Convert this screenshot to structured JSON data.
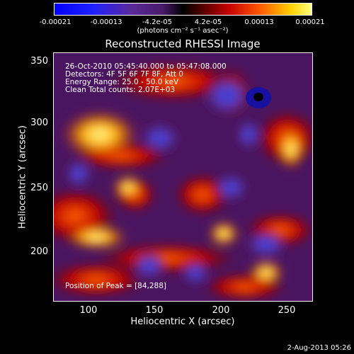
{
  "colorbar": {
    "ticks": [
      "-0.00021",
      "-0.00013",
      "-4.2e-05",
      "4.2e-05",
      "0.00013",
      "0.00021"
    ],
    "units": "(photons cm⁻² s⁻¹ asec⁻²)"
  },
  "title": "Reconstructed RHESSI Image",
  "info": {
    "time": "26-Oct-2010 05:45:40.000 to 05:47:08.000",
    "detectors": "Detectors: 4F 5F 6F 7F 8F, Att 0",
    "energy": "Energy Range: 25.0 - 50.0 keV",
    "method": "Clean     Total counts: 2.07E+03"
  },
  "peak": "Position of Peak = [84,288]",
  "axes": {
    "xlabel": "Heliocentric X (arcsec)",
    "ylabel": "Heliocentric Y (arcsec)",
    "xticks": [
      "100",
      "150",
      "200",
      "250"
    ],
    "yticks": [
      "350",
      "300",
      "250",
      "200"
    ]
  },
  "date_stamp": "2-Aug-2013 05:26"
}
